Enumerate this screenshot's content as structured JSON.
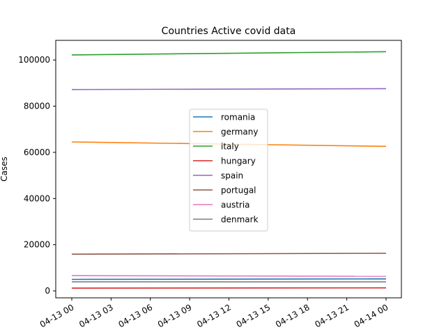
{
  "chart_data": {
    "type": "line",
    "title": "Countries Active covid data",
    "xlabel": "",
    "ylabel": "Cases",
    "x_ticks": [
      "04-13 00",
      "04-13 03",
      "04-13 06",
      "04-13 09",
      "04-13 12",
      "04-13 15",
      "04-13 18",
      "04-13 21",
      "04-14 00"
    ],
    "x": [
      "2020-04-13 00:00",
      "2020-04-14 00:00"
    ],
    "y_ticks": [
      "0",
      "20000",
      "40000",
      "60000",
      "80000",
      "100000"
    ],
    "ylim": [
      -3000,
      108500
    ],
    "grid": false,
    "legend_position": "center",
    "series": [
      {
        "name": "romania",
        "color": "#1f77b4",
        "values": [
          5000,
          5200
        ]
      },
      {
        "name": "germany",
        "color": "#ff7f0e",
        "values": [
          64500,
          62600
        ]
      },
      {
        "name": "italy",
        "color": "#2ca02c",
        "values": [
          102200,
          103600
        ]
      },
      {
        "name": "hungary",
        "color": "#d62728",
        "values": [
          1200,
          1300
        ]
      },
      {
        "name": "spain",
        "color": "#9467bd",
        "values": [
          87200,
          87600
        ]
      },
      {
        "name": "portugal",
        "color": "#8c564b",
        "values": [
          15900,
          16300
        ]
      },
      {
        "name": "austria",
        "color": "#e377c2",
        "values": [
          6600,
          6300
        ]
      },
      {
        "name": "denmark",
        "color": "#7f7f7f",
        "values": [
          3900,
          3900
        ]
      }
    ]
  }
}
